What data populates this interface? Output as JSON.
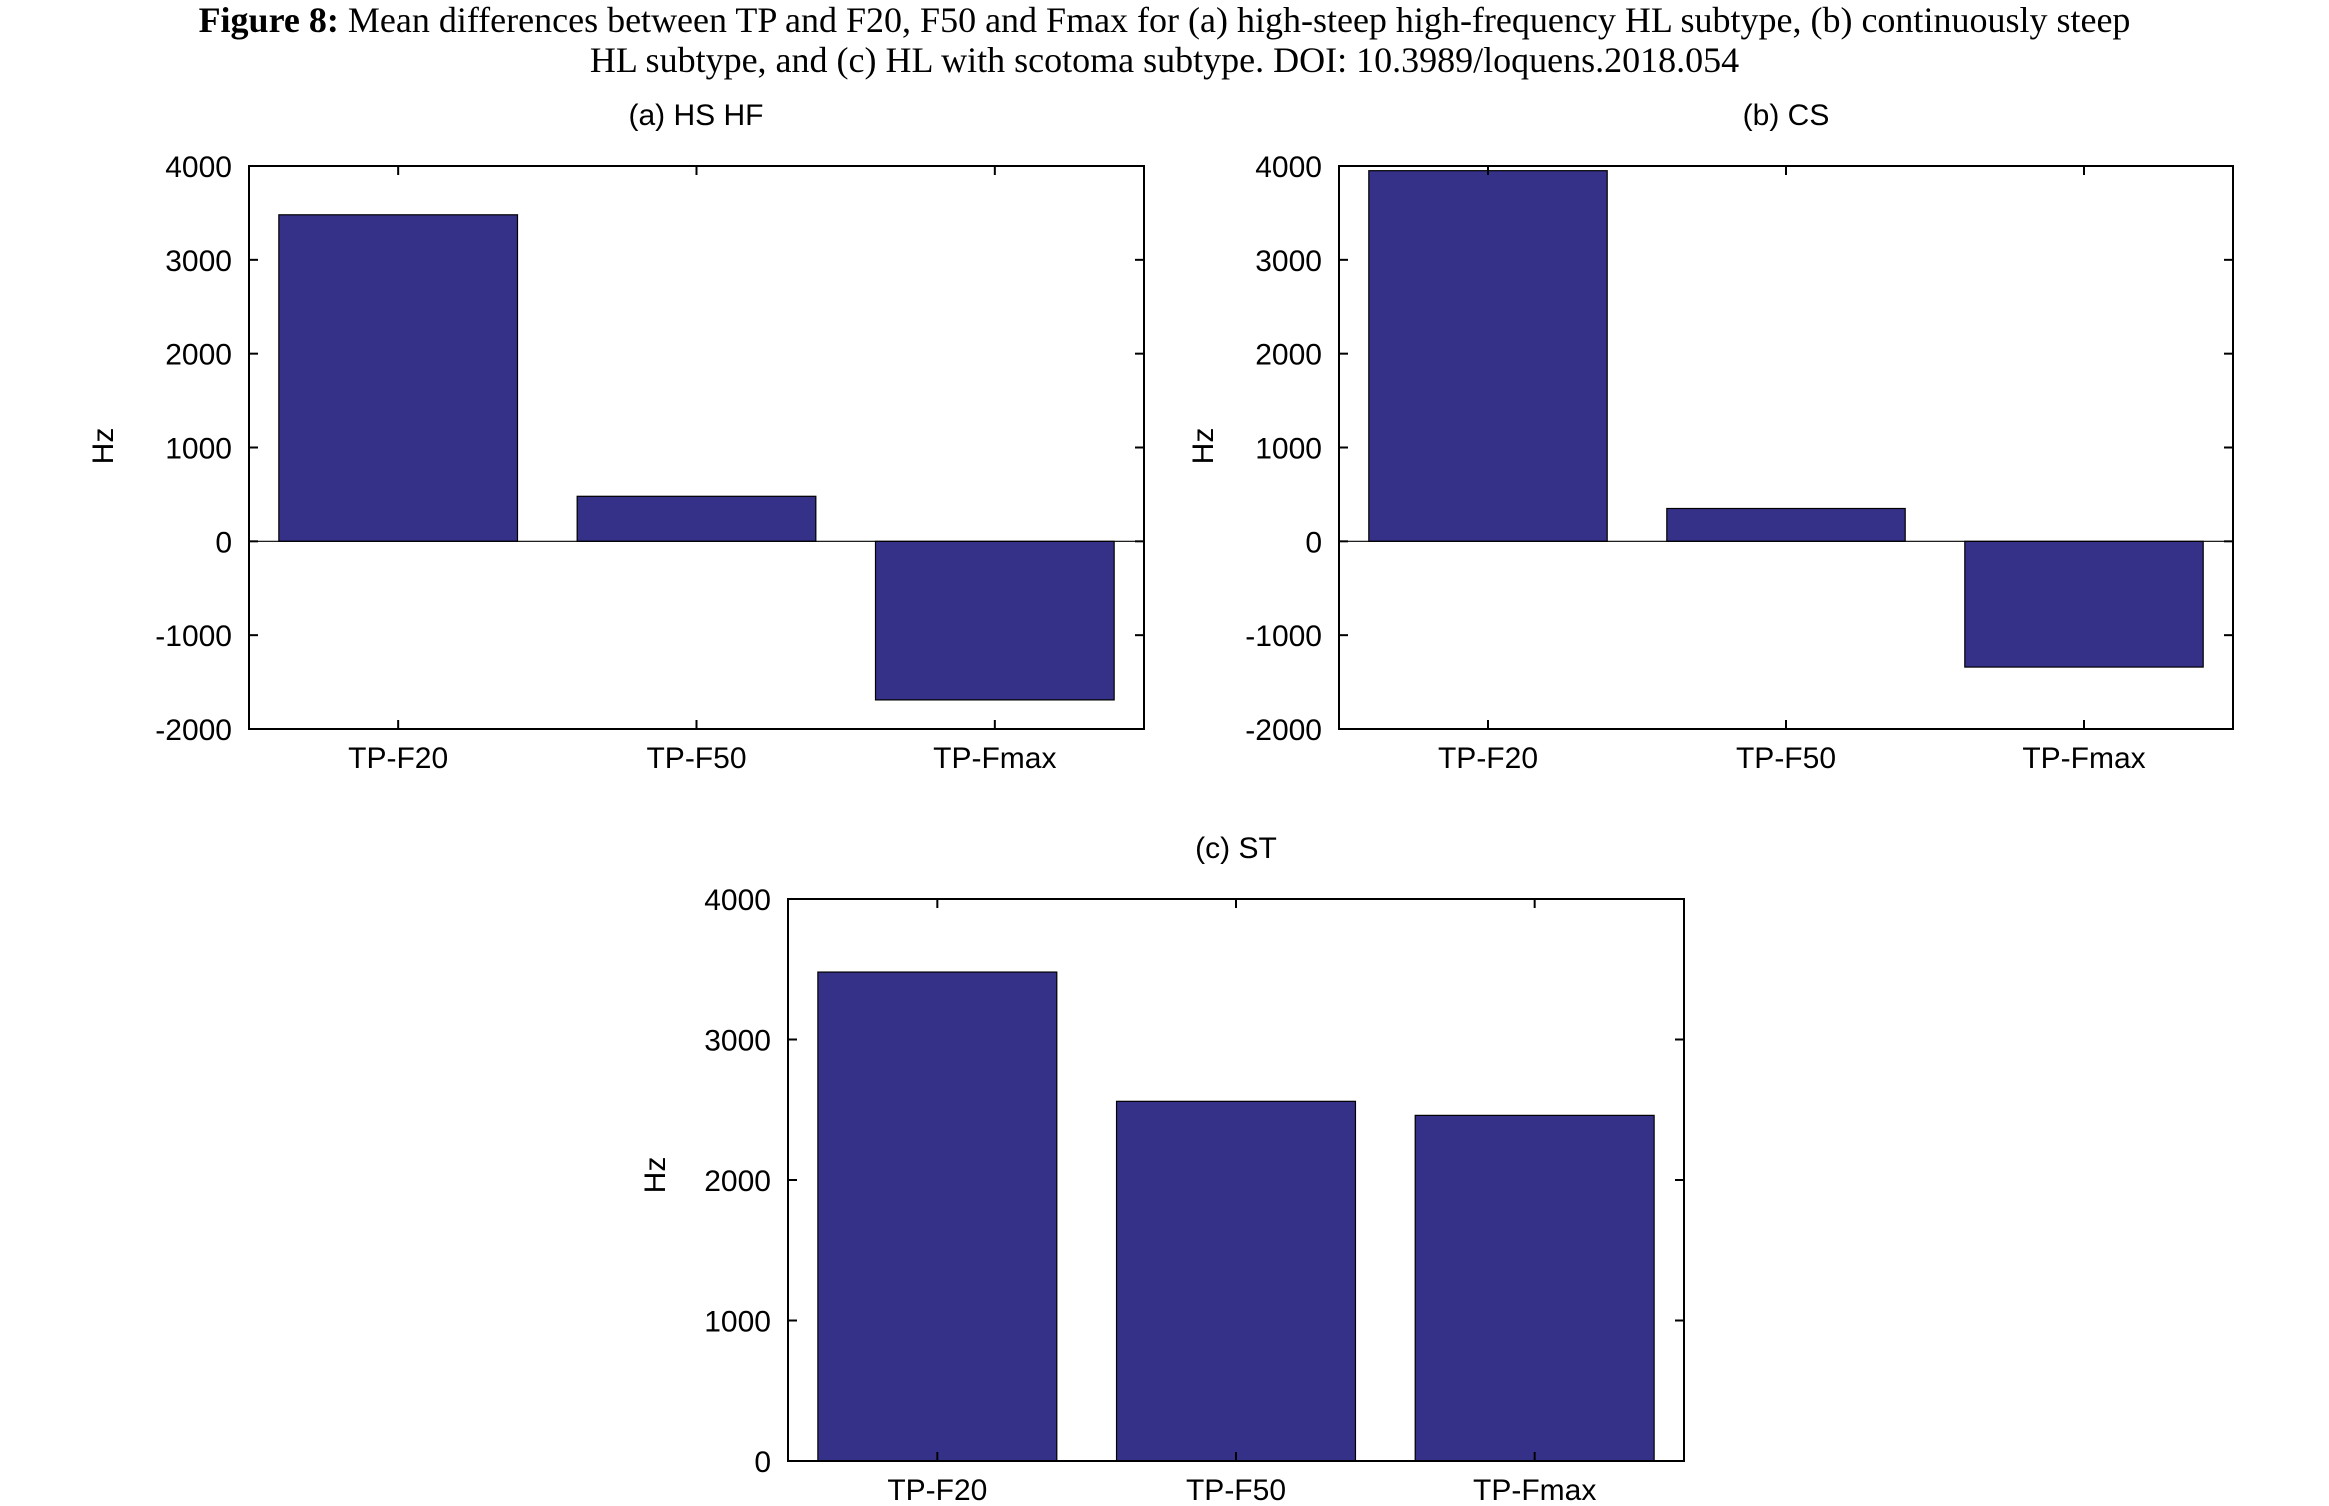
{
  "figure": {
    "caption_label": "Figure 8:",
    "caption_line1": " Mean differences between TP and F20, F50 and Fmax for (a) high-steep high-frequency HL subtype, (b) continuously steep",
    "caption_line2": "HL subtype, and (c) HL with scotoma subtype.  DOI: 10.3989/loquens.2018.054"
  },
  "chart_data": [
    {
      "type": "bar",
      "title": "(a) HS HF",
      "ylabel": "Hz",
      "xlabel": "",
      "categories": [
        "TP-F20",
        "TP-F50",
        "TP-Fmax"
      ],
      "values": [
        3480,
        480,
        -1690
      ],
      "ylim": [
        -2000,
        4000
      ],
      "yticks": [
        -2000,
        -1000,
        0,
        1000,
        2000,
        3000,
        4000
      ],
      "bar_color": "#353088",
      "grid": false
    },
    {
      "type": "bar",
      "title": "(b) CS",
      "ylabel": "Hz",
      "xlabel": "",
      "categories": [
        "TP-F20",
        "TP-F50",
        "TP-Fmax"
      ],
      "values": [
        3950,
        350,
        -1340
      ],
      "ylim": [
        -2000,
        4000
      ],
      "yticks": [
        -2000,
        -1000,
        0,
        1000,
        2000,
        3000,
        4000
      ],
      "bar_color": "#353088",
      "grid": false
    },
    {
      "type": "bar",
      "title": "(c) ST",
      "ylabel": "Hz",
      "xlabel": "",
      "categories": [
        "TP-F20",
        "TP-F50",
        "TP-Fmax"
      ],
      "values": [
        3480,
        2560,
        2460
      ],
      "ylim": [
        0,
        4000
      ],
      "yticks": [
        0,
        1000,
        2000,
        3000,
        4000
      ],
      "bar_color": "#353088",
      "grid": false
    }
  ]
}
